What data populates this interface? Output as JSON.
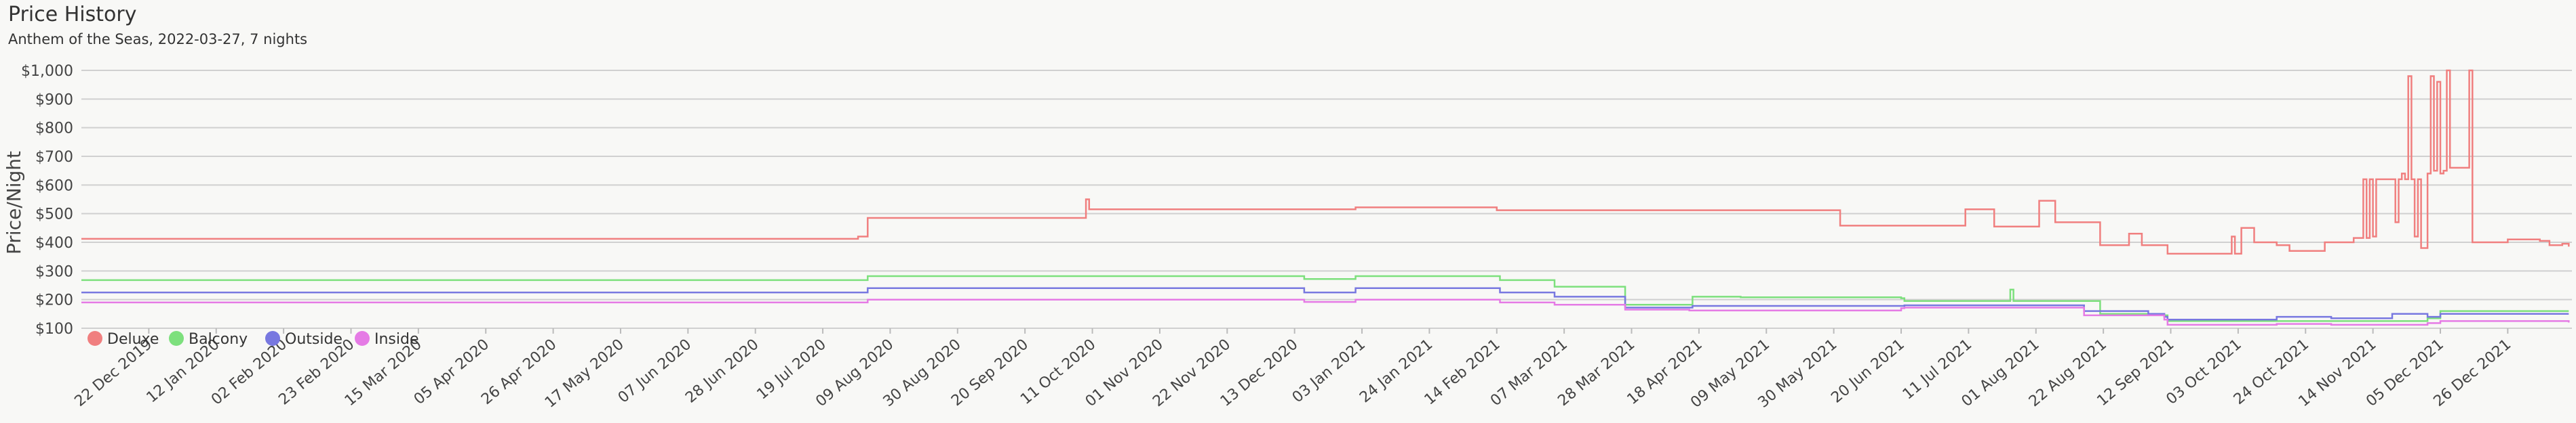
{
  "chart_data": {
    "type": "line",
    "title": "Price History",
    "subtitle": "Anthem of the Seas, 2022-03-27, 7 nights",
    "ylabel": "Price/Night",
    "xlabel": "",
    "ylim": [
      100,
      1000
    ],
    "yticks": [
      "$100",
      "$200",
      "$300",
      "$400",
      "$500",
      "$600",
      "$700",
      "$800",
      "$900",
      "$1,000"
    ],
    "xticks": [
      "22 Dec 2019",
      "12 Jan 2020",
      "02 Feb 2020",
      "23 Feb 2020",
      "15 Mar 2020",
      "05 Apr 2020",
      "26 Apr 2020",
      "17 May 2020",
      "07 Jun 2020",
      "28 Jun 2020",
      "19 Jul 2020",
      "09 Aug 2020",
      "30 Aug 2020",
      "20 Sep 2020",
      "11 Oct 2020",
      "01 Nov 2020",
      "22 Nov 2020",
      "13 Dec 2020",
      "03 Jan 2021",
      "24 Jan 2021",
      "14 Feb 2021",
      "07 Mar 2021",
      "28 Mar 2021",
      "18 Apr 2021",
      "09 May 2021",
      "30 May 2021",
      "20 Jun 2021",
      "11 Jul 2021",
      "01 Aug 2021",
      "22 Aug 2021",
      "12 Sep 2021",
      "03 Oct 2021",
      "24 Oct 2021",
      "14 Nov 2021",
      "05 Dec 2021",
      "26 Dec 2021"
    ],
    "x_start": "2019-12-01",
    "x_end": "2022-01-15",
    "grid": true,
    "legend_position": "bottom-left",
    "series": [
      {
        "name": "Deluxe",
        "color": "#f07f7f",
        "points": [
          [
            "2019-12-01",
            412
          ],
          [
            "2020-07-30",
            420
          ],
          [
            "2020-08-02",
            485
          ],
          [
            "2020-10-08",
            485
          ],
          [
            "2020-10-09",
            550
          ],
          [
            "2020-10-10",
            515
          ],
          [
            "2020-12-30",
            515
          ],
          [
            "2021-01-01",
            522
          ],
          [
            "2021-02-14",
            512
          ],
          [
            "2021-05-30",
            512
          ],
          [
            "2021-06-01",
            458
          ],
          [
            "2021-07-08",
            458
          ],
          [
            "2021-07-10",
            515
          ],
          [
            "2021-07-17",
            515
          ],
          [
            "2021-07-19",
            455
          ],
          [
            "2021-08-01",
            455
          ],
          [
            "2021-08-02",
            545
          ],
          [
            "2021-08-06",
            545
          ],
          [
            "2021-08-07",
            470
          ],
          [
            "2021-08-20",
            470
          ],
          [
            "2021-08-21",
            390
          ],
          [
            "2021-08-29",
            390
          ],
          [
            "2021-08-30",
            430
          ],
          [
            "2021-09-02",
            430
          ],
          [
            "2021-09-03",
            390
          ],
          [
            "2021-09-10",
            390
          ],
          [
            "2021-09-11",
            360
          ],
          [
            "2021-09-30",
            360
          ],
          [
            "2021-10-01",
            420
          ],
          [
            "2021-10-02",
            360
          ],
          [
            "2021-10-04",
            450
          ],
          [
            "2021-10-07",
            450
          ],
          [
            "2021-10-08",
            400
          ],
          [
            "2021-10-14",
            400
          ],
          [
            "2021-10-15",
            390
          ],
          [
            "2021-10-18",
            390
          ],
          [
            "2021-10-19",
            370
          ],
          [
            "2021-10-29",
            370
          ],
          [
            "2021-10-30",
            400
          ],
          [
            "2021-11-07",
            400
          ],
          [
            "2021-11-08",
            415
          ],
          [
            "2021-11-10",
            415
          ],
          [
            "2021-11-11",
            620
          ],
          [
            "2021-11-12",
            415
          ],
          [
            "2021-11-13",
            620
          ],
          [
            "2021-11-14",
            420
          ],
          [
            "2021-11-15",
            620
          ],
          [
            "2021-11-20",
            620
          ],
          [
            "2021-11-21",
            470
          ],
          [
            "2021-11-22",
            620
          ],
          [
            "2021-11-23",
            640
          ],
          [
            "2021-11-24",
            620
          ],
          [
            "2021-11-25",
            980
          ],
          [
            "2021-11-26",
            620
          ],
          [
            "2021-11-27",
            420
          ],
          [
            "2021-11-28",
            620
          ],
          [
            "2021-11-29",
            380
          ],
          [
            "2021-11-30",
            380
          ],
          [
            "2021-12-01",
            640
          ],
          [
            "2021-12-02",
            980
          ],
          [
            "2021-12-03",
            650
          ],
          [
            "2021-12-04",
            960
          ],
          [
            "2021-12-05",
            640
          ],
          [
            "2021-12-06",
            650
          ],
          [
            "2021-12-07",
            1000
          ],
          [
            "2021-12-08",
            660
          ],
          [
            "2021-12-13",
            660
          ],
          [
            "2021-12-14",
            1000
          ],
          [
            "2021-12-15",
            400
          ],
          [
            "2021-12-25",
            400
          ],
          [
            "2021-12-26",
            410
          ],
          [
            "2022-01-05",
            405
          ],
          [
            "2022-01-08",
            390
          ],
          [
            "2022-01-12",
            395
          ],
          [
            "2022-01-14",
            385
          ]
        ]
      },
      {
        "name": "Balcony",
        "color": "#7de07d",
        "points": [
          [
            "2019-12-01",
            268
          ],
          [
            "2020-07-30",
            268
          ],
          [
            "2020-08-02",
            282
          ],
          [
            "2020-12-15",
            282
          ],
          [
            "2020-12-16",
            272
          ],
          [
            "2021-01-01",
            282
          ],
          [
            "2021-02-14",
            282
          ],
          [
            "2021-02-15",
            268
          ],
          [
            "2021-03-03",
            268
          ],
          [
            "2021-03-04",
            245
          ],
          [
            "2021-03-25",
            245
          ],
          [
            "2021-03-26",
            182
          ],
          [
            "2021-04-15",
            182
          ],
          [
            "2021-04-16",
            210
          ],
          [
            "2021-05-01",
            208
          ],
          [
            "2021-06-20",
            205
          ],
          [
            "2021-06-21",
            195
          ],
          [
            "2021-07-23",
            195
          ],
          [
            "2021-07-24",
            235
          ],
          [
            "2021-07-25",
            195
          ],
          [
            "2021-08-20",
            195
          ],
          [
            "2021-08-21",
            150
          ],
          [
            "2021-09-10",
            145
          ],
          [
            "2021-09-11",
            125
          ],
          [
            "2021-11-01",
            125
          ],
          [
            "2021-12-01",
            135
          ],
          [
            "2021-12-05",
            160
          ],
          [
            "2022-01-14",
            160
          ]
        ]
      },
      {
        "name": "Outside",
        "color": "#7878e0",
        "points": [
          [
            "2019-12-01",
            225
          ],
          [
            "2020-07-30",
            225
          ],
          [
            "2020-08-02",
            240
          ],
          [
            "2020-12-15",
            240
          ],
          [
            "2020-12-16",
            225
          ],
          [
            "2021-01-01",
            240
          ],
          [
            "2021-02-14",
            240
          ],
          [
            "2021-02-15",
            225
          ],
          [
            "2021-03-03",
            225
          ],
          [
            "2021-03-04",
            210
          ],
          [
            "2021-03-25",
            210
          ],
          [
            "2021-03-26",
            172
          ],
          [
            "2021-04-15",
            172
          ],
          [
            "2021-04-16",
            178
          ],
          [
            "2021-06-20",
            178
          ],
          [
            "2021-06-21",
            180
          ],
          [
            "2021-08-15",
            180
          ],
          [
            "2021-08-16",
            160
          ],
          [
            "2021-09-05",
            150
          ],
          [
            "2021-09-10",
            140
          ],
          [
            "2021-09-11",
            130
          ],
          [
            "2021-10-15",
            140
          ],
          [
            "2021-11-01",
            135
          ],
          [
            "2021-11-20",
            150
          ],
          [
            "2021-12-01",
            140
          ],
          [
            "2021-12-05",
            150
          ],
          [
            "2022-01-14",
            150
          ]
        ]
      },
      {
        "name": "Inside",
        "color": "#e57be5",
        "points": [
          [
            "2019-12-01",
            190
          ],
          [
            "2020-07-30",
            190
          ],
          [
            "2020-08-02",
            200
          ],
          [
            "2020-12-15",
            200
          ],
          [
            "2020-12-16",
            192
          ],
          [
            "2021-01-01",
            200
          ],
          [
            "2021-02-14",
            200
          ],
          [
            "2021-02-15",
            190
          ],
          [
            "2021-03-03",
            190
          ],
          [
            "2021-03-04",
            182
          ],
          [
            "2021-03-25",
            182
          ],
          [
            "2021-03-26",
            165
          ],
          [
            "2021-04-15",
            162
          ],
          [
            "2021-06-20",
            170
          ],
          [
            "2021-06-21",
            172
          ],
          [
            "2021-08-15",
            172
          ],
          [
            "2021-08-16",
            145
          ],
          [
            "2021-09-10",
            130
          ],
          [
            "2021-09-11",
            112
          ],
          [
            "2021-10-15",
            115
          ],
          [
            "2021-11-01",
            112
          ],
          [
            "2021-12-01",
            118
          ],
          [
            "2021-12-05",
            125
          ],
          [
            "2022-01-14",
            120
          ]
        ]
      }
    ]
  }
}
